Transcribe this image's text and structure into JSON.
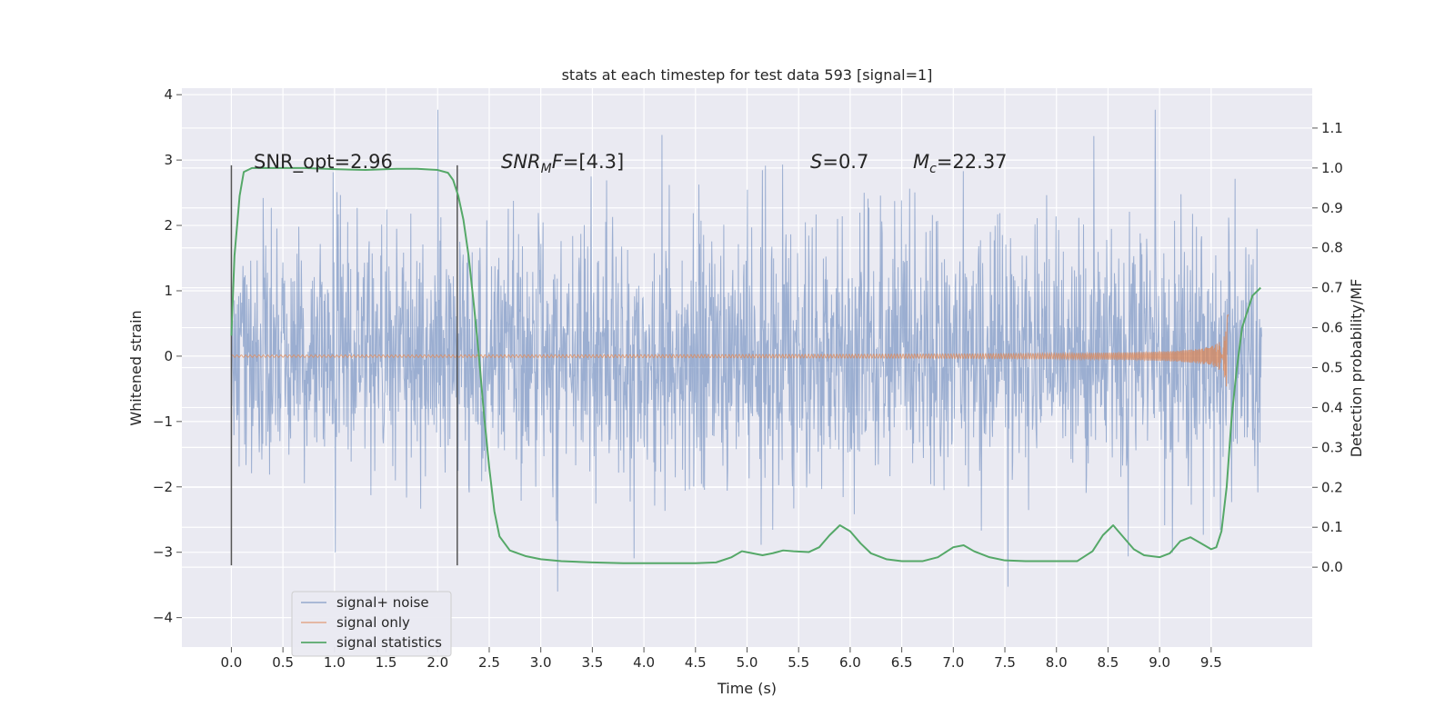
{
  "chart_data": {
    "type": "line",
    "title": "stats at each timestep for test data 593 [signal=1]",
    "xlabel": "Time (s)",
    "ylabel_left": "Whitened strain",
    "ylabel_right": "Detection probability/MF",
    "xlim": [
      -0.48,
      10.48
    ],
    "ylim_left": [
      -4.45,
      4.1
    ],
    "ylim_right": [
      -0.2,
      1.2
    ],
    "x_ticks": [
      "0.0",
      "0.5",
      "1.0",
      "1.5",
      "2.0",
      "2.5",
      "3.0",
      "3.5",
      "4.0",
      "4.5",
      "5.0",
      "5.5",
      "6.0",
      "6.5",
      "7.0",
      "7.5",
      "8.0",
      "8.5",
      "9.0",
      "9.5"
    ],
    "y_ticks_left": [
      "4",
      "3",
      "2",
      "1",
      "0",
      "−1",
      "−2",
      "−3",
      "−4"
    ],
    "y_ticks_right": [
      "1.1",
      "1.0",
      "0.9",
      "0.8",
      "0.7",
      "0.6",
      "0.5",
      "0.4",
      "0.3",
      "0.2",
      "0.1",
      "0.0"
    ],
    "grid": true,
    "legend_position": "lower-left",
    "colors": {
      "noise": "#4c72b0",
      "signal": "#dd8452",
      "stats": "#55a868",
      "marker": "#555555",
      "background": "#eaeaf2"
    },
    "series": [
      {
        "name": "signal+ noise",
        "axis": "left",
        "x_range": [
          0.0,
          9.99
        ],
        "amplitude_envelope": [
          -3.6,
          3.77
        ]
      },
      {
        "name": "signal only",
        "axis": "left",
        "x_range": [
          0.0,
          9.67
        ],
        "peak_time": 9.67,
        "peak_amplitude": 0.66
      },
      {
        "name": "signal statistics",
        "axis": "right",
        "x": [
          0.0,
          0.03,
          0.08,
          0.12,
          0.2,
          0.3,
          0.5,
          0.7,
          1.0,
          1.3,
          1.6,
          1.8,
          2.0,
          2.1,
          2.15,
          2.2,
          2.25,
          2.3,
          2.35,
          2.4,
          2.45,
          2.5,
          2.55,
          2.6,
          2.7,
          2.85,
          3.0,
          3.2,
          3.5,
          3.8,
          4.0,
          4.2,
          4.5,
          4.7,
          4.85,
          4.95,
          5.05,
          5.15,
          5.25,
          5.35,
          5.45,
          5.6,
          5.7,
          5.8,
          5.9,
          6.0,
          6.1,
          6.2,
          6.35,
          6.5,
          6.7,
          6.85,
          7.0,
          7.1,
          7.2,
          7.35,
          7.5,
          7.7,
          7.9,
          8.0,
          8.2,
          8.35,
          8.45,
          8.55,
          8.6,
          8.75,
          8.85,
          9.0,
          9.1,
          9.2,
          9.3,
          9.4,
          9.5,
          9.55,
          9.6,
          9.65,
          9.7,
          9.75,
          9.8,
          9.9,
          9.98
        ],
        "y": [
          0.58,
          0.78,
          0.93,
          0.99,
          1.0,
          1.0,
          1.0,
          1.0,
          0.997,
          0.995,
          0.998,
          0.998,
          0.995,
          0.988,
          0.97,
          0.93,
          0.87,
          0.78,
          0.66,
          0.53,
          0.38,
          0.25,
          0.14,
          0.077,
          0.042,
          0.028,
          0.02,
          0.015,
          0.012,
          0.01,
          0.01,
          0.01,
          0.01,
          0.012,
          0.025,
          0.04,
          0.035,
          0.03,
          0.035,
          0.042,
          0.04,
          0.038,
          0.05,
          0.08,
          0.105,
          0.09,
          0.06,
          0.035,
          0.02,
          0.015,
          0.015,
          0.025,
          0.05,
          0.055,
          0.04,
          0.025,
          0.017,
          0.015,
          0.015,
          0.015,
          0.015,
          0.04,
          0.08,
          0.105,
          0.09,
          0.045,
          0.03,
          0.025,
          0.035,
          0.065,
          0.075,
          0.06,
          0.045,
          0.05,
          0.09,
          0.2,
          0.38,
          0.5,
          0.6,
          0.68,
          0.7
        ]
      }
    ],
    "annotations": {
      "snr_opt": "SNR_opt=2.96",
      "snr_mf_italic": "SNR",
      "snr_mf_sub": "M",
      "snr_mf_tail_italic": "F",
      "snr_mf_value": "=[4.3]",
      "s_italic": "S",
      "s_value": "=0.7",
      "mc_italic": "M",
      "mc_sub": "c",
      "mc_value": "=22.37"
    },
    "markers": {
      "window_lines_x": [
        0.0,
        2.19
      ]
    }
  }
}
